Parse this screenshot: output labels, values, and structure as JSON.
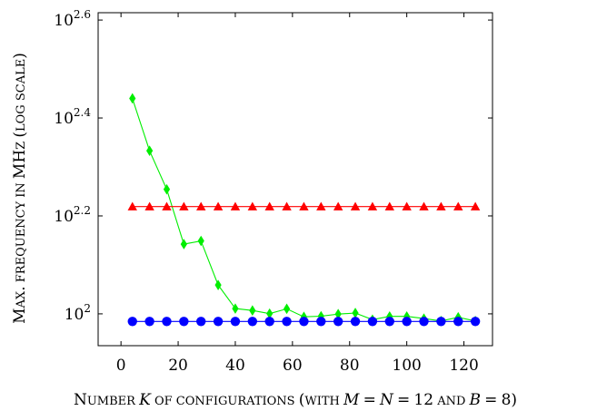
{
  "chart_data": {
    "type": "line",
    "xlabel": "Number K of configurations (with M = N = 12 and B = 8)",
    "ylabel": "Max. frequency in MHz (log scale)",
    "log_y": true,
    "xlim": [
      -8,
      130
    ],
    "ylim_log10": [
      1.935,
      2.615
    ],
    "x_ticks": [
      0,
      20,
      40,
      60,
      80,
      100,
      120
    ],
    "y_ticks": [
      {
        "exp": 2.0,
        "base": "10",
        "sup": "2"
      },
      {
        "exp": 2.2,
        "base": "10",
        "sup": "2.2"
      },
      {
        "exp": 2.4,
        "base": "10",
        "sup": "2.4"
      },
      {
        "exp": 2.6,
        "base": "10",
        "sup": "2.6"
      }
    ],
    "grid": false,
    "x": [
      4,
      10,
      16,
      22,
      28,
      34,
      40,
      46,
      52,
      58,
      64,
      70,
      76,
      82,
      88,
      94,
      100,
      106,
      112,
      118,
      124
    ],
    "series": [
      {
        "color": "#00ee00",
        "marker": "diamond",
        "values": [
          275.4,
          215.3,
          179.6,
          138.8,
          140.9,
          114.5,
          102.5,
          101.6,
          100.1,
          102.4,
          98.6,
          98.9,
          99.9,
          100.4,
          97.3,
          98.8,
          98.8,
          97.8,
          96.7,
          98.4,
          96.7
        ]
      },
      {
        "color": "#ff0000",
        "marker": "triangle",
        "values": [
          165.6,
          165.6,
          165.6,
          165.6,
          165.6,
          165.6,
          165.6,
          165.6,
          165.6,
          165.6,
          165.6,
          165.6,
          165.6,
          165.6,
          165.6,
          165.6,
          165.6,
          165.6,
          165.6,
          165.6,
          165.6
        ]
      },
      {
        "color": "#0000ff",
        "marker": "circle",
        "values": [
          96.5,
          96.5,
          96.5,
          96.5,
          96.5,
          96.5,
          96.5,
          96.5,
          96.5,
          96.5,
          96.5,
          96.5,
          96.5,
          96.5,
          96.5,
          96.5,
          96.5,
          96.5,
          96.5,
          96.5,
          96.5
        ]
      }
    ]
  }
}
